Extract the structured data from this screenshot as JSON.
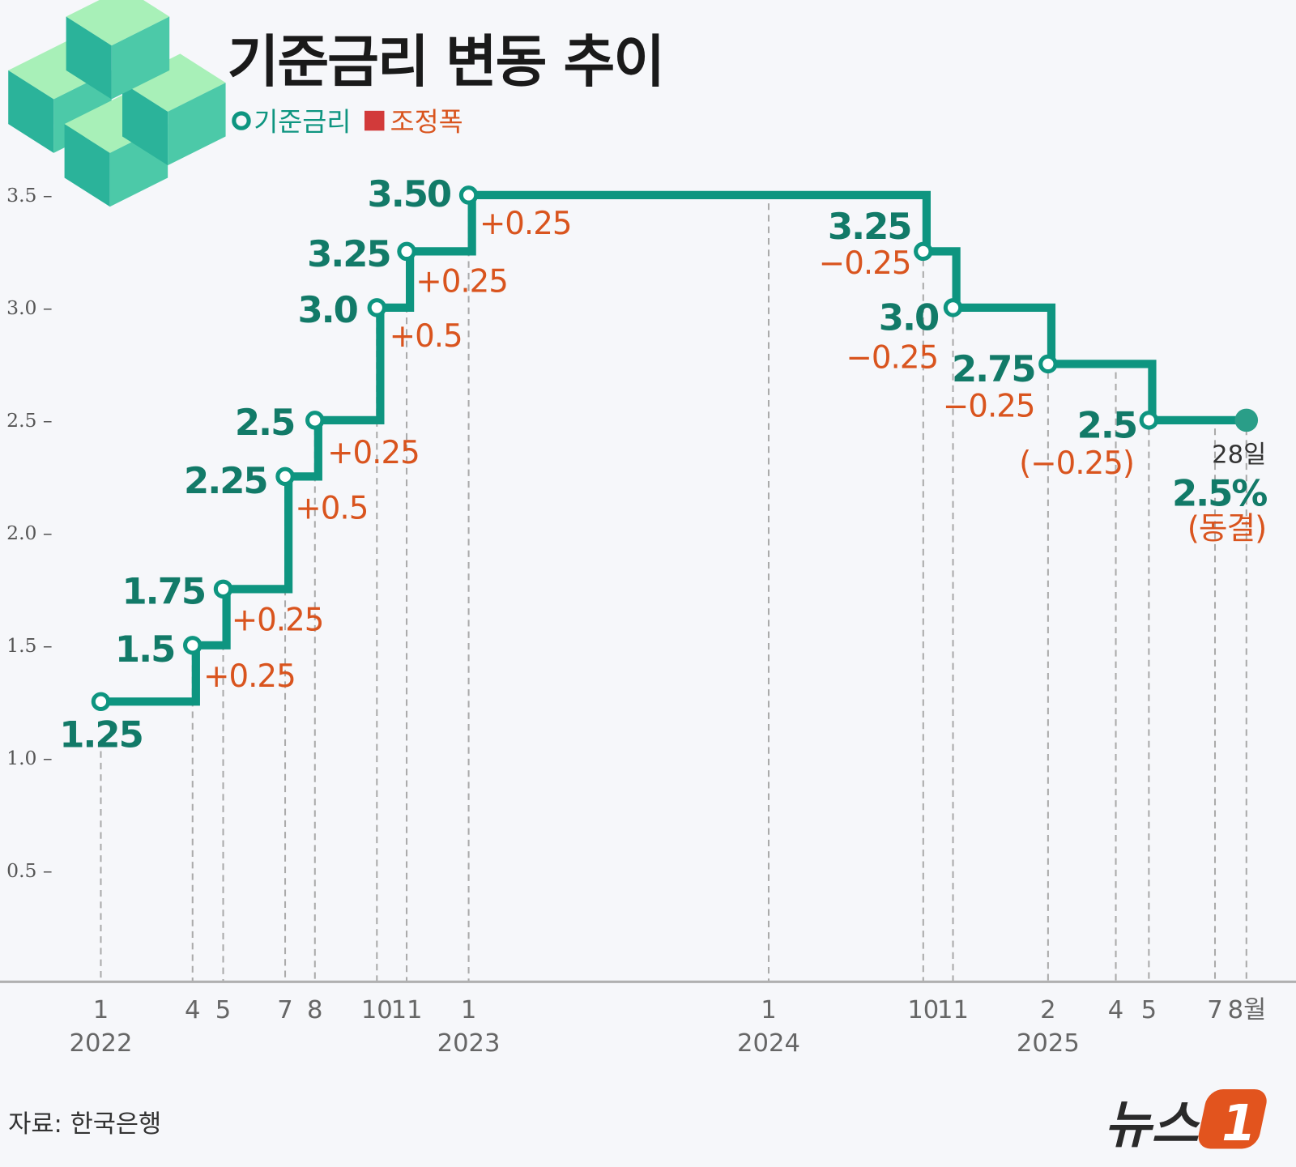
{
  "title": "기준금리 변동 추이",
  "legend": [
    {
      "label": "기준금리",
      "color": "#0e9580",
      "marker": "open-circle"
    },
    {
      "label": "조정폭",
      "color": "#d23a3a",
      "marker": "square"
    }
  ],
  "source": "자료: 한국은행",
  "logo": {
    "text": "뉴스",
    "mark": "1",
    "color": "#e2541e"
  },
  "colors": {
    "line": "#0e9580",
    "value": "#127a68",
    "change": "#d9541e",
    "background": "#f6f7fa"
  },
  "chart_data": {
    "type": "line",
    "style": "step",
    "title": "기준금리 변동 추이",
    "ylim": [
      0,
      3.5
    ],
    "yticks": [
      "3.5",
      "3.0",
      "2.5",
      "2.0",
      "1.5",
      "1.0",
      "0.5"
    ],
    "xticks": [
      {
        "label": "1",
        "year": "2022"
      },
      {
        "label": "4"
      },
      {
        "label": "5"
      },
      {
        "label": "7"
      },
      {
        "label": "8"
      },
      {
        "label": "10"
      },
      {
        "label": "11"
      },
      {
        "label": "1",
        "year": "2023"
      },
      {
        "label": "1",
        "year": "2024"
      },
      {
        "label": "10"
      },
      {
        "label": "11"
      },
      {
        "label": "2",
        "year": "2025"
      },
      {
        "label": "4"
      },
      {
        "label": "5"
      },
      {
        "label": "7"
      },
      {
        "label": "8월"
      }
    ],
    "series": [
      {
        "points": [
          {
            "date": "2022-01",
            "value": 1.25,
            "value_label": "1.25",
            "change": ""
          },
          {
            "date": "2022-04",
            "value": 1.5,
            "value_label": "1.5",
            "change": "+0.25"
          },
          {
            "date": "2022-05",
            "value": 1.75,
            "value_label": "1.75",
            "change": "+0.25"
          },
          {
            "date": "2022-07",
            "value": 2.25,
            "value_label": "2.25",
            "change": "+0.5"
          },
          {
            "date": "2022-08",
            "value": 2.5,
            "value_label": "2.5",
            "change": "+0.25"
          },
          {
            "date": "2022-10",
            "value": 3.0,
            "value_label": "3.0",
            "change": "+0.5"
          },
          {
            "date": "2022-11",
            "value": 3.25,
            "value_label": "3.25",
            "change": "+0.25"
          },
          {
            "date": "2023-01",
            "value": 3.5,
            "value_label": "3.50",
            "change": "+0.25"
          },
          {
            "date": "2024-10",
            "value": 3.25,
            "value_label": "3.25",
            "change": "−0.25"
          },
          {
            "date": "2024-11",
            "value": 3.0,
            "value_label": "3.0",
            "change": "−0.25"
          },
          {
            "date": "2025-02",
            "value": 2.75,
            "value_label": "2.75",
            "change": "−0.25"
          },
          {
            "date": "2025-05",
            "value": 2.5,
            "value_label": "2.5",
            "change": "(−0.25)"
          }
        ],
        "latest": {
          "date": "2025-08-28",
          "value": 2.5,
          "day_label": "28일",
          "value_label": "2.5%",
          "note": "(동결)"
        }
      }
    ]
  }
}
